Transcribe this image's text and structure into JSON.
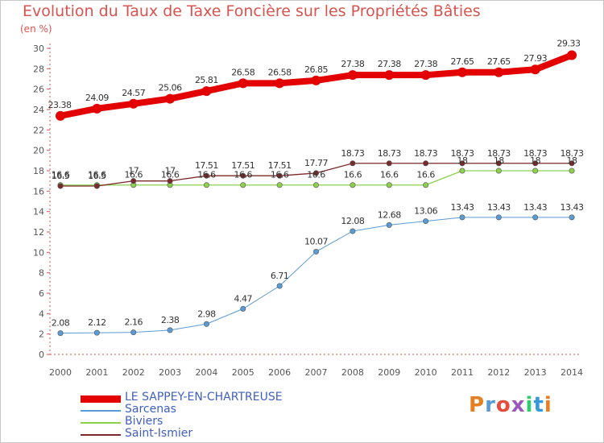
{
  "chart_data": {
    "type": "line",
    "title": "Evolution du Taux de Taxe Foncière sur les Propriétés Bâties",
    "ylabel": "(en %)",
    "ylim": [
      0,
      30
    ],
    "yticks": [
      "0",
      "2",
      "4",
      "6",
      "8",
      "10",
      "12",
      "14",
      "16",
      "18",
      "20",
      "22",
      "24",
      "26",
      "28",
      "30"
    ],
    "categories": [
      "2000",
      "2001",
      "2002",
      "2003",
      "2004",
      "2005",
      "2006",
      "2007",
      "2008",
      "2009",
      "2010",
      "2011",
      "2012",
      "2013",
      "2014"
    ],
    "series": [
      {
        "name": "LE SAPPEY-EN-CHARTREUSE",
        "color": "#e30000",
        "values": [
          23.38,
          24.09,
          24.57,
          25.06,
          25.81,
          26.58,
          26.58,
          26.85,
          27.38,
          27.38,
          27.38,
          27.65,
          27.65,
          27.93,
          29.33
        ],
        "labels": [
          "23.38",
          "24.09",
          "24.57",
          "25.06",
          "25.81",
          "26.58",
          "26.58",
          "26.85",
          "27.38",
          "27.38",
          "27.38",
          "27.65",
          "27.65",
          "27.93",
          "29.33"
        ]
      },
      {
        "name": "Sarcenas",
        "color": "#5b9bd5",
        "values": [
          2.08,
          2.12,
          2.16,
          2.38,
          2.98,
          4.47,
          6.71,
          10.07,
          12.08,
          12.68,
          13.06,
          13.43,
          13.43,
          13.43,
          13.43
        ],
        "labels": [
          "2.08",
          "2.12",
          "2.16",
          "2.38",
          "2.98",
          "4.47",
          "6.71",
          "10.07",
          "12.08",
          "12.68",
          "13.06",
          "13.43",
          "13.43",
          "13.43",
          "13.43"
        ]
      },
      {
        "name": "Biviers",
        "color": "#8cd04c",
        "values": [
          16.6,
          16.6,
          16.6,
          16.6,
          16.6,
          16.6,
          16.6,
          16.6,
          16.6,
          16.6,
          16.6,
          18,
          18,
          18,
          18
        ],
        "labels": [
          "16.6",
          "16.6",
          "16.6",
          "16.6",
          "16.6",
          "16.6",
          "16.6",
          "16.6",
          "16.6",
          "16.6",
          "16.6",
          "18",
          "18",
          "18",
          "18"
        ]
      },
      {
        "name": "Saint-Ismier",
        "color": "#7a2a2a",
        "values": [
          16.5,
          16.5,
          17,
          17,
          17.51,
          17.51,
          17.51,
          17.77,
          18.73,
          18.73,
          18.73,
          18.73,
          18.73,
          18.73,
          18.73
        ],
        "labels": [
          "16.5",
          "16.5",
          "17",
          "17",
          "17.51",
          "17.51",
          "17.51",
          "17.77",
          "18.73",
          "18.73",
          "18.73",
          "18.73",
          "18.73",
          "18.73",
          "18.73"
        ]
      }
    ]
  },
  "logo": {
    "text": "Proxiti",
    "colors": [
      "#e67e22",
      "#5b9bd5",
      "#e74c3c",
      "#9b59b6",
      "#2ecc71",
      "#3498db",
      "#e67e22"
    ]
  }
}
